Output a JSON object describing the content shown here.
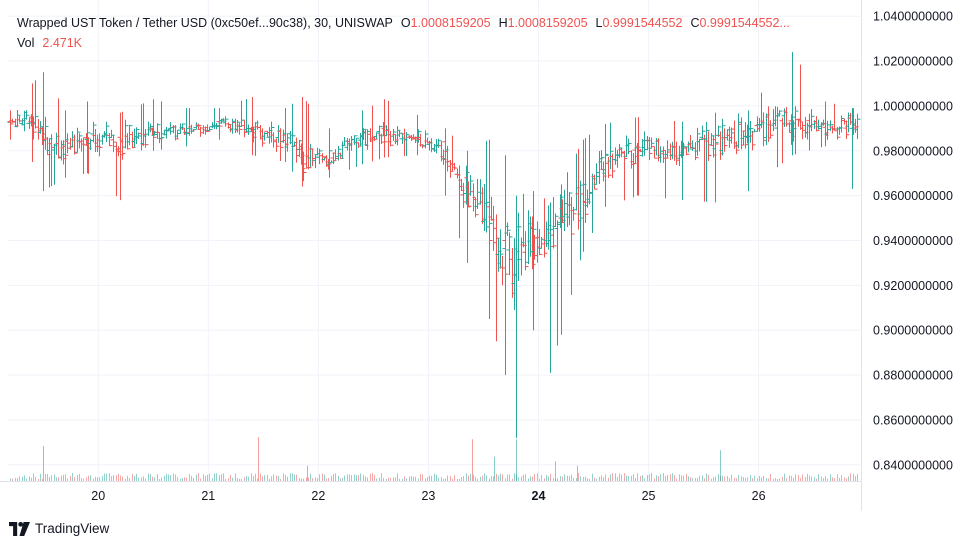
{
  "legend": {
    "symbol": "Wrapped UST Token / Tether USD (0xc50ef...90c38), 30, UNISWAP",
    "o_label": "O",
    "o_value": "1.0008159205",
    "h_label": "H",
    "h_value": "1.0008159205",
    "l_label": "L",
    "l_value": "0.9991544552",
    "c_label": "C",
    "c_value": "0.9991544552...",
    "vol_label": "Vol",
    "vol_value": "2.471K"
  },
  "branding": {
    "name": "TradingView",
    "icon": "tradingview-logo-icon"
  },
  "colors": {
    "up": "#26a69a",
    "down": "#ef5350",
    "grid": "#f0f3fa",
    "axis_text": "#131722",
    "border": "#e0e3eb"
  },
  "chart_data": {
    "type": "ohlc-bar",
    "interval": "30",
    "exchange": "UNISWAP",
    "y_ticks": [
      "1.0400000000",
      "1.0200000000",
      "1.0000000000",
      "0.9800000000",
      "0.9600000000",
      "0.9400000000",
      "0.9200000000",
      "0.9000000000",
      "0.8800000000",
      "0.8600000000",
      "0.8400000000"
    ],
    "ylim": [
      0.835,
      1.045
    ],
    "x_ticks": [
      {
        "label": "20",
        "day": 20,
        "bold": false
      },
      {
        "label": "21",
        "day": 21,
        "bold": false
      },
      {
        "label": "22",
        "day": 22,
        "bold": false
      },
      {
        "label": "23",
        "day": 23,
        "bold": false
      },
      {
        "label": "24",
        "day": 24,
        "bold": true
      },
      {
        "label": "25",
        "day": 25,
        "bold": false
      },
      {
        "label": "26",
        "day": 26,
        "bold": false
      }
    ],
    "xlim": [
      19.18,
      26.93
    ],
    "grid": true,
    "ohlc_anchors": [
      {
        "day": 19.2,
        "o": 0.993,
        "h": 0.998,
        "l": 0.985,
        "c": 0.992
      },
      {
        "day": 19.4,
        "o": 0.995,
        "h": 1.01,
        "l": 0.975,
        "c": 0.992
      },
      {
        "day": 19.5,
        "o": 0.99,
        "h": 1.015,
        "l": 0.962,
        "c": 0.985
      },
      {
        "day": 19.7,
        "o": 0.982,
        "h": 0.998,
        "l": 0.968,
        "c": 0.978
      },
      {
        "day": 19.9,
        "o": 0.985,
        "h": 1.002,
        "l": 0.97,
        "c": 0.988
      },
      {
        "day": 20.2,
        "o": 0.986,
        "h": 0.997,
        "l": 0.958,
        "c": 0.984
      },
      {
        "day": 20.5,
        "o": 0.99,
        "h": 1.003,
        "l": 0.98,
        "c": 0.986
      },
      {
        "day": 20.8,
        "o": 0.988,
        "h": 0.999,
        "l": 0.982,
        "c": 0.99
      },
      {
        "day": 21.1,
        "o": 0.993,
        "h": 0.999,
        "l": 0.985,
        "c": 0.991
      },
      {
        "day": 21.4,
        "o": 0.99,
        "h": 1.004,
        "l": 0.978,
        "c": 0.988
      },
      {
        "day": 21.7,
        "o": 0.987,
        "h": 0.999,
        "l": 0.975,
        "c": 0.983
      },
      {
        "day": 21.85,
        "o": 0.982,
        "h": 1.004,
        "l": 0.964,
        "c": 0.972
      },
      {
        "day": 22.1,
        "o": 0.974,
        "h": 0.99,
        "l": 0.968,
        "c": 0.98
      },
      {
        "day": 22.4,
        "o": 0.983,
        "h": 0.998,
        "l": 0.974,
        "c": 0.988
      },
      {
        "day": 22.6,
        "o": 0.99,
        "h": 1.003,
        "l": 0.977,
        "c": 0.984
      },
      {
        "day": 22.9,
        "o": 0.986,
        "h": 0.996,
        "l": 0.978,
        "c": 0.985
      },
      {
        "day": 23.15,
        "o": 0.984,
        "h": 0.99,
        "l": 0.96,
        "c": 0.975
      },
      {
        "day": 23.35,
        "o": 0.968,
        "h": 0.98,
        "l": 0.93,
        "c": 0.955
      },
      {
        "day": 23.55,
        "o": 0.955,
        "h": 0.985,
        "l": 0.905,
        "c": 0.94
      },
      {
        "day": 23.7,
        "o": 0.94,
        "h": 0.978,
        "l": 0.88,
        "c": 0.925
      },
      {
        "day": 23.8,
        "o": 0.925,
        "h": 0.96,
        "l": 0.852,
        "c": 0.935
      },
      {
        "day": 23.95,
        "o": 0.935,
        "h": 0.962,
        "l": 0.9,
        "c": 0.945
      },
      {
        "day": 24.1,
        "o": 0.94,
        "h": 0.957,
        "l": 0.881,
        "c": 0.945
      },
      {
        "day": 24.2,
        "o": 0.95,
        "h": 0.965,
        "l": 0.898,
        "c": 0.948
      },
      {
        "day": 24.4,
        "o": 0.95,
        "h": 0.985,
        "l": 0.935,
        "c": 0.965
      },
      {
        "day": 24.6,
        "o": 0.97,
        "h": 0.992,
        "l": 0.955,
        "c": 0.978
      },
      {
        "day": 24.9,
        "o": 0.982,
        "h": 0.995,
        "l": 0.96,
        "c": 0.98
      },
      {
        "day": 25.3,
        "o": 0.978,
        "h": 0.993,
        "l": 0.958,
        "c": 0.982
      },
      {
        "day": 25.6,
        "o": 0.985,
        "h": 0.997,
        "l": 0.957,
        "c": 0.983
      },
      {
        "day": 25.9,
        "o": 0.986,
        "h": 0.998,
        "l": 0.962,
        "c": 0.99
      },
      {
        "day": 26.3,
        "o": 0.992,
        "h": 1.024,
        "l": 0.978,
        "c": 0.995
      },
      {
        "day": 26.6,
        "o": 0.992,
        "h": 1.002,
        "l": 0.982,
        "c": 0.988
      },
      {
        "day": 26.85,
        "o": 0.99,
        "h": 0.999,
        "l": 0.963,
        "c": 0.992
      }
    ],
    "volume_spikes": [
      {
        "day": 19.5,
        "rel": 0.8,
        "dir": "up"
      },
      {
        "day": 21.45,
        "rel": 1.0,
        "dir": "down"
      },
      {
        "day": 21.9,
        "rel": 0.35,
        "dir": "up"
      },
      {
        "day": 23.4,
        "rel": 0.95,
        "dir": "down"
      },
      {
        "day": 23.6,
        "rel": 0.55,
        "dir": "up"
      },
      {
        "day": 23.8,
        "rel": 0.95,
        "dir": "up"
      },
      {
        "day": 24.15,
        "rel": 0.45,
        "dir": "down"
      },
      {
        "day": 24.35,
        "rel": 0.35,
        "dir": "up"
      },
      {
        "day": 25.65,
        "rel": 0.7,
        "dir": "up"
      }
    ]
  }
}
